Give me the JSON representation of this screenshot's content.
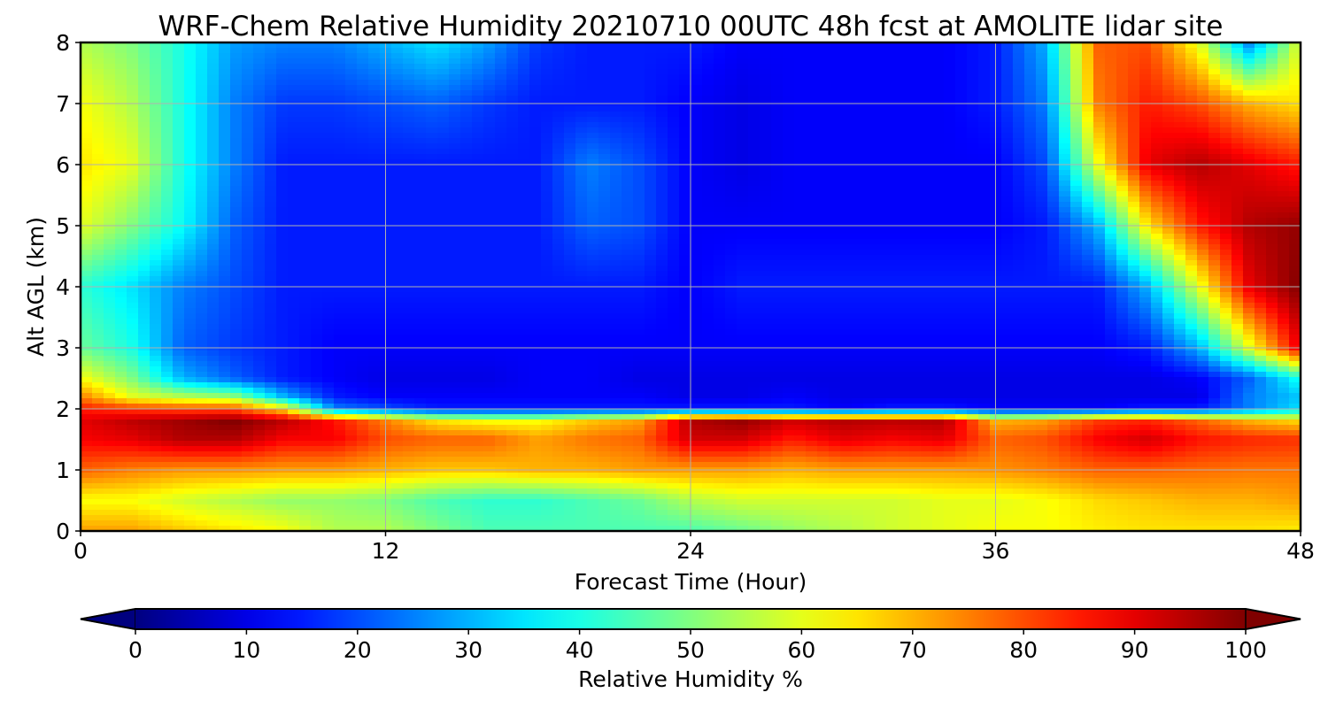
{
  "chart_data": {
    "type": "heatmap",
    "title": "WRF-Chem Relative Humidity 20210710 00UTC 48h fcst at AMOLITE lidar site",
    "xlabel": "Forecast Time (Hour)",
    "ylabel": "Alt AGL (km)",
    "xlim": [
      0,
      48
    ],
    "ylim": [
      0,
      8
    ],
    "xticks": [
      0,
      12,
      24,
      36,
      48
    ],
    "yticks": [
      0,
      1,
      2,
      3,
      4,
      5,
      6,
      7,
      8
    ],
    "grid": true,
    "colormap": "jet",
    "colorbar": {
      "label": "Relative Humidity %",
      "range": [
        0,
        100
      ],
      "ticks": [
        0,
        10,
        20,
        30,
        40,
        50,
        60,
        70,
        80,
        90,
        100
      ],
      "extend": "both",
      "orientation": "horizontal"
    },
    "x": [
      0,
      2,
      4,
      6,
      8,
      10,
      12,
      14,
      16,
      18,
      20,
      22,
      24,
      26,
      28,
      30,
      32,
      34,
      36,
      38,
      40,
      42,
      44,
      46,
      48
    ],
    "y": [
      0,
      0.5,
      1,
      1.5,
      1.8,
      2,
      2.2,
      2.5,
      3,
      4,
      5,
      6,
      7,
      8
    ],
    "values": [
      [
        72,
        72,
        68,
        65,
        62,
        55,
        55,
        50,
        45,
        45,
        45,
        45,
        45,
        48,
        52,
        55,
        58,
        60,
        62,
        62,
        64,
        65,
        65,
        65,
        64
      ],
      [
        62,
        62,
        58,
        55,
        52,
        52,
        50,
        45,
        42,
        42,
        45,
        48,
        55,
        58,
        58,
        58,
        58,
        60,
        60,
        62,
        66,
        68,
        70,
        70,
        72
      ],
      [
        78,
        75,
        73,
        73,
        72,
        72,
        70,
        68,
        68,
        70,
        70,
        72,
        72,
        72,
        70,
        72,
        72,
        72,
        73,
        75,
        78,
        78,
        77,
        76,
        76
      ],
      [
        88,
        90,
        95,
        95,
        88,
        88,
        80,
        78,
        78,
        72,
        76,
        78,
        92,
        92,
        85,
        90,
        88,
        90,
        78,
        80,
        88,
        92,
        86,
        84,
        83
      ],
      [
        90,
        94,
        97,
        100,
        94,
        86,
        75,
        65,
        62,
        62,
        68,
        72,
        95,
        98,
        92,
        95,
        94,
        95,
        70,
        72,
        82,
        84,
        78,
        70,
        66
      ],
      [
        85,
        82,
        80,
        80,
        65,
        25,
        20,
        15,
        15,
        15,
        15,
        15,
        15,
        15,
        15,
        12,
        15,
        15,
        12,
        12,
        12,
        15,
        15,
        25,
        35
      ],
      [
        75,
        60,
        55,
        52,
        30,
        15,
        12,
        12,
        12,
        12,
        12,
        12,
        10,
        10,
        12,
        10,
        10,
        10,
        10,
        10,
        10,
        10,
        10,
        25,
        32
      ],
      [
        62,
        50,
        30,
        22,
        15,
        12,
        10,
        10,
        10,
        12,
        12,
        10,
        10,
        10,
        10,
        10,
        10,
        10,
        10,
        10,
        10,
        10,
        12,
        22,
        40
      ],
      [
        48,
        40,
        22,
        18,
        15,
        12,
        12,
        12,
        12,
        12,
        12,
        12,
        12,
        12,
        12,
        12,
        12,
        12,
        12,
        12,
        12,
        15,
        30,
        60,
        90
      ],
      [
        42,
        35,
        25,
        20,
        15,
        15,
        15,
        15,
        15,
        15,
        15,
        15,
        12,
        15,
        15,
        15,
        15,
        15,
        15,
        15,
        15,
        30,
        60,
        90,
        100
      ],
      [
        60,
        50,
        38,
        22,
        15,
        15,
        15,
        15,
        15,
        15,
        22,
        20,
        12,
        12,
        12,
        12,
        12,
        12,
        12,
        15,
        30,
        65,
        85,
        95,
        98
      ],
      [
        65,
        60,
        40,
        25,
        15,
        15,
        15,
        15,
        15,
        15,
        25,
        20,
        12,
        10,
        12,
        12,
        12,
        12,
        12,
        20,
        60,
        90,
        95,
        90,
        85
      ],
      [
        62,
        55,
        40,
        25,
        18,
        18,
        20,
        22,
        18,
        15,
        15,
        15,
        12,
        10,
        12,
        12,
        12,
        12,
        15,
        25,
        75,
        85,
        80,
        70,
        65
      ],
      [
        55,
        50,
        40,
        28,
        25,
        25,
        30,
        35,
        28,
        18,
        15,
        15,
        15,
        12,
        12,
        12,
        12,
        12,
        15,
        30,
        78,
        80,
        60,
        25,
        60
      ]
    ]
  }
}
